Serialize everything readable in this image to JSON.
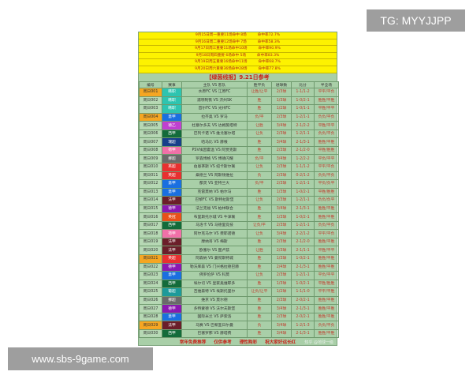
{
  "stats": [
    {
      "text": "9月15日周一重要11场命中 8场",
      "rate": "命中率72.7%"
    },
    {
      "text": "9月16日周二重要12场命中 7场",
      "rate": "命中率58.3%"
    },
    {
      "text": "9月17日周三重要11场命中10场",
      "rate": "命中率90.9%"
    },
    {
      "text": "9月18日周四重要 6场命中 5场",
      "rate": "命中率83.3%"
    },
    {
      "text": "9月19日周五重要16场命中11场",
      "rate": "命中率68.7%"
    },
    {
      "text": "9月20日周六重要36场命中28场",
      "rate": "命中率77.8%"
    }
  ],
  "title": "【绿茵线报】9.21日参考",
  "headers": [
    "编号",
    "赛事",
    "主队 VS 客队",
    "胜平负",
    "进球数",
    "比分",
    "半全场"
  ],
  "rows": [
    [
      "周日001",
      "韩职",
      "#2ec4b0",
      "水原FC VS 江原FC",
      "让胜/让平",
      "2/3球",
      "1-1/1-2",
      "平平/平负",
      true
    ],
    [
      "周日002",
      "韩职",
      "#2ec4b0",
      "浦项制铁 VS 济州SK",
      "胜",
      "1/3球",
      "1-0/2-1",
      "胜胜/平胜",
      false
    ],
    [
      "周日003",
      "韩职",
      "#2ec4b0",
      "首尔FC VS 光州FC",
      "胜",
      "1/2球",
      "1-0/1-1",
      "平胜/平平",
      false
    ],
    [
      "周日004",
      "意甲",
      "#1a6fe0",
      "拉齐奥 VS 罗马",
      "负/平",
      "2/3球",
      "1-2/1-1",
      "负负/平负",
      true
    ],
    [
      "周日005",
      "德乙",
      "#c040d0",
      "杜塞尔多夫 VS 达姆施塔特",
      "让胜",
      "3/4球",
      "2-1/2-2",
      "平胜/平平",
      false
    ],
    [
      "周日006",
      "西甲",
      "#136b3a",
      "巴列卡诺 VS 维戈塞尔塔",
      "让负",
      "2/3球",
      "1-2/1-1",
      "负负/平负",
      false
    ],
    [
      "周日007",
      "瑞超",
      "#173f8a",
      "哈马比 VS 赫根",
      "胜",
      "3/4球",
      "2-1/3-1",
      "胜胜/平胜",
      false
    ],
    [
      "周日008",
      "荷甲",
      "#f070a8",
      "PSV埃因霍温 VS 阿贾克斯",
      "胜",
      "2/3球",
      "2-1/2-0",
      "平胜/胜胜",
      false
    ],
    [
      "周日009",
      "挪超",
      "#6a6a6a",
      "罗森博格 VS 博德闪耀",
      "负/平",
      "3/4球",
      "1-2/2-2",
      "平负/平平",
      false
    ],
    [
      "周日010",
      "英超",
      "#e83030",
      "伯恩茅斯 VS 纽卡斯尔联",
      "让负",
      "2/3球",
      "1-1/1-2",
      "平平/平负",
      false
    ],
    [
      "周日011",
      "英超",
      "#e83030",
      "桑德兰 VS 阿斯顿维拉",
      "负",
      "2/3球",
      "0-2/1-2",
      "负负/平负",
      false
    ],
    [
      "周日012",
      "意甲",
      "#1a6fe0",
      "都灵 VS 亚特兰大",
      "负/平",
      "2/3球",
      "1-2/1-1",
      "平负/负平",
      false
    ],
    [
      "周日013",
      "意甲",
      "#1a6fe0",
      "克雷莫纳 VS 帕尔马",
      "胜",
      "1/3球",
      "1-0/2-1",
      "平胜/胜胜",
      false
    ],
    [
      "周日014",
      "法甲",
      "#6b1e2a",
      "巴黎FC VS 斯特拉斯堡",
      "让负",
      "2/3球",
      "1-2/1-1",
      "负负/负平",
      false
    ],
    [
      "周日015",
      "德甲",
      "#8a18b0",
      "法兰克福 VS 柏林联合",
      "胜",
      "3/4球",
      "2-1/3-1",
      "胜胜/平胜",
      false
    ],
    [
      "周日016",
      "英冠",
      "#e8501a",
      "布里斯托尔城 VS 牛津联",
      "胜",
      "1/3球",
      "1-0/2-1",
      "胜胜/平胜",
      false
    ],
    [
      "周日017",
      "西甲",
      "#136b3a",
      "马洛卡 VS 马德里竞技",
      "让负/平",
      "2/3球",
      "1-2/1-1",
      "负负/平负",
      false
    ],
    [
      "周日018",
      "荷甲",
      "#f070a8",
      "阿尔克马尔 VS 费耶诺德",
      "让负",
      "3/4球",
      "2-2/1-2",
      "平平/平负",
      false
    ],
    [
      "周日019",
      "法甲",
      "#6b1e2a",
      "摩纳哥 VS 梅斯",
      "胜",
      "2/3球",
      "2-1/2-0",
      "胜胜/平胜",
      false
    ],
    [
      "周日020",
      "法甲",
      "#6b1e2a",
      "欧塞尔 VS 图卢兹",
      "让胜",
      "2/3球",
      "2-1/1-1",
      "平胜/平平",
      false
    ],
    [
      "周日021",
      "英超",
      "#e83030",
      "阿森纳 VS 曼彻斯特城",
      "胜",
      "1/3球",
      "1-0/2-1",
      "胜胜/平胜",
      true
    ],
    [
      "周日022",
      "德甲",
      "#8a18b0",
      "勒沃库森 VS 门兴格拉德巴赫",
      "胜",
      "2/4球",
      "2-1/3-1",
      "胜胜/平胜",
      false
    ],
    [
      "周日023",
      "意甲",
      "#1a6fe0",
      "佛罗伦萨 VS 科莫",
      "让负",
      "2/3球",
      "1-2/1-1",
      "平负/平平",
      false
    ],
    [
      "周日024",
      "西甲",
      "#136b3a",
      "埃尔切 VS 皇家奥维耶多",
      "胜",
      "1/3球",
      "1-0/2-1",
      "平胜/胜胜",
      false
    ],
    [
      "周日025",
      "葡超",
      "#1d9a9a",
      "吉维森特 VS 埃斯托里尔",
      "让负/让平",
      "1/2球",
      "1-1/1-0",
      "平平/平胜",
      false
    ],
    [
      "周日026",
      "挪超",
      "#6a6a6a",
      "维京 VS 莫尔德",
      "胜",
      "2/3球",
      "2-0/2-1",
      "胜胜/平胜",
      false
    ],
    [
      "周日027",
      "德甲",
      "#8a18b0",
      "多特蒙德 VS 沃尔夫斯堡",
      "胜",
      "3/4球",
      "2-1/3-1",
      "胜胜/平胜",
      false
    ],
    [
      "周日028",
      "意甲",
      "#1a6fe0",
      "国际米兰 VS 萨索洛",
      "胜",
      "2/3球",
      "2-0/2-1",
      "胜胜/平胜",
      false
    ],
    [
      "周日029",
      "法甲",
      "#6b1e2a",
      "马赛 VS 巴黎圣日尔曼",
      "负",
      "3/4球",
      "1-2/1-3",
      "负负/平负",
      true
    ],
    [
      "周日030",
      "西甲",
      "#136b3a",
      "巴塞罗那 VS 赫塔费",
      "胜",
      "3/4球",
      "2-1/3-1",
      "胜胜/平胜",
      false
    ]
  ],
  "footer": [
    "常年免费推荐",
    "仅供参考",
    "理性购彩",
    "祝大家好运长红"
  ],
  "watermark": "知乎 @地球一级",
  "overlay_tg": "TG: MYYJJPP",
  "overlay_site": "www.sbs-9game.com"
}
